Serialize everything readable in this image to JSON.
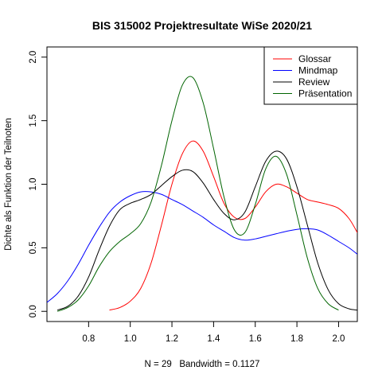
{
  "chart_data": {
    "type": "line",
    "title": "BIS 315002 Projektresultate WiSe 2020/21",
    "xlabel": "N = 29   Bandwidth = 0.1127",
    "ylabel": "Dichte als Funktion der Teilnoten",
    "xlim": [
      0.6,
      2.09
    ],
    "ylim": [
      -0.08,
      2.08
    ],
    "x_ticks": [
      0.8,
      1.0,
      1.2,
      1.4,
      1.6,
      1.8,
      2.0
    ],
    "x_tick_labels": [
      "0.8",
      "1.0",
      "1.2",
      "1.4",
      "1.6",
      "1.8",
      "2.0"
    ],
    "y_ticks": [
      0.0,
      0.5,
      1.0,
      1.5,
      2.0
    ],
    "y_tick_labels": [
      "0.0",
      "0.5",
      "1.0",
      "1.5",
      "2.0"
    ],
    "grid": false,
    "legend_position": "top-right",
    "series": [
      {
        "name": "Glossar",
        "color": "#ff0000",
        "points": [
          [
            0.9,
            0.01
          ],
          [
            0.95,
            0.03
          ],
          [
            1.0,
            0.08
          ],
          [
            1.05,
            0.18
          ],
          [
            1.1,
            0.38
          ],
          [
            1.15,
            0.68
          ],
          [
            1.2,
            1.0
          ],
          [
            1.25,
            1.24
          ],
          [
            1.3,
            1.34
          ],
          [
            1.35,
            1.26
          ],
          [
            1.4,
            1.06
          ],
          [
            1.45,
            0.85
          ],
          [
            1.5,
            0.74
          ],
          [
            1.55,
            0.73
          ],
          [
            1.6,
            0.82
          ],
          [
            1.65,
            0.94
          ],
          [
            1.7,
            1.0
          ],
          [
            1.75,
            0.98
          ],
          [
            1.8,
            0.93
          ],
          [
            1.85,
            0.88
          ],
          [
            1.9,
            0.86
          ],
          [
            1.95,
            0.84
          ],
          [
            2.0,
            0.81
          ],
          [
            2.05,
            0.73
          ],
          [
            2.09,
            0.62
          ]
        ]
      },
      {
        "name": "Mindmap",
        "color": "#0000ff",
        "points": [
          [
            0.6,
            0.07
          ],
          [
            0.65,
            0.14
          ],
          [
            0.7,
            0.24
          ],
          [
            0.75,
            0.37
          ],
          [
            0.8,
            0.52
          ],
          [
            0.85,
            0.66
          ],
          [
            0.9,
            0.78
          ],
          [
            0.95,
            0.86
          ],
          [
            1.0,
            0.91
          ],
          [
            1.05,
            0.94
          ],
          [
            1.1,
            0.94
          ],
          [
            1.15,
            0.92
          ],
          [
            1.2,
            0.88
          ],
          [
            1.25,
            0.84
          ],
          [
            1.3,
            0.79
          ],
          [
            1.35,
            0.74
          ],
          [
            1.4,
            0.68
          ],
          [
            1.45,
            0.63
          ],
          [
            1.5,
            0.58
          ],
          [
            1.55,
            0.56
          ],
          [
            1.6,
            0.57
          ],
          [
            1.65,
            0.59
          ],
          [
            1.7,
            0.61
          ],
          [
            1.75,
            0.63
          ],
          [
            1.8,
            0.645
          ],
          [
            1.85,
            0.65
          ],
          [
            1.9,
            0.64
          ],
          [
            1.95,
            0.6
          ],
          [
            2.0,
            0.55
          ],
          [
            2.05,
            0.5
          ],
          [
            2.09,
            0.45
          ]
        ]
      },
      {
        "name": "Review",
        "color": "#000000",
        "points": [
          [
            0.65,
            0.01
          ],
          [
            0.7,
            0.04
          ],
          [
            0.75,
            0.12
          ],
          [
            0.8,
            0.27
          ],
          [
            0.85,
            0.48
          ],
          [
            0.9,
            0.67
          ],
          [
            0.95,
            0.8
          ],
          [
            1.0,
            0.85
          ],
          [
            1.05,
            0.88
          ],
          [
            1.1,
            0.92
          ],
          [
            1.15,
            0.99
          ],
          [
            1.2,
            1.06
          ],
          [
            1.25,
            1.11
          ],
          [
            1.3,
            1.1
          ],
          [
            1.35,
            1.01
          ],
          [
            1.4,
            0.88
          ],
          [
            1.45,
            0.77
          ],
          [
            1.5,
            0.72
          ],
          [
            1.55,
            0.78
          ],
          [
            1.6,
            0.98
          ],
          [
            1.65,
            1.18
          ],
          [
            1.7,
            1.26
          ],
          [
            1.75,
            1.2
          ],
          [
            1.8,
            0.98
          ],
          [
            1.85,
            0.68
          ],
          [
            1.9,
            0.38
          ],
          [
            1.95,
            0.17
          ],
          [
            2.0,
            0.06
          ],
          [
            2.05,
            0.02
          ],
          [
            2.09,
            0.01
          ]
        ]
      },
      {
        "name": "Präsentation",
        "color": "#006400",
        "points": [
          [
            0.65,
            0.0
          ],
          [
            0.7,
            0.03
          ],
          [
            0.75,
            0.09
          ],
          [
            0.8,
            0.2
          ],
          [
            0.85,
            0.35
          ],
          [
            0.9,
            0.47
          ],
          [
            0.95,
            0.55
          ],
          [
            1.0,
            0.61
          ],
          [
            1.05,
            0.69
          ],
          [
            1.1,
            0.86
          ],
          [
            1.15,
            1.15
          ],
          [
            1.2,
            1.5
          ],
          [
            1.25,
            1.78
          ],
          [
            1.3,
            1.84
          ],
          [
            1.35,
            1.64
          ],
          [
            1.4,
            1.28
          ],
          [
            1.45,
            0.9
          ],
          [
            1.5,
            0.64
          ],
          [
            1.55,
            0.62
          ],
          [
            1.6,
            0.84
          ],
          [
            1.65,
            1.12
          ],
          [
            1.7,
            1.22
          ],
          [
            1.75,
            1.08
          ],
          [
            1.8,
            0.76
          ],
          [
            1.85,
            0.42
          ],
          [
            1.9,
            0.18
          ],
          [
            1.95,
            0.06
          ],
          [
            2.0,
            0.01
          ]
        ]
      }
    ]
  }
}
